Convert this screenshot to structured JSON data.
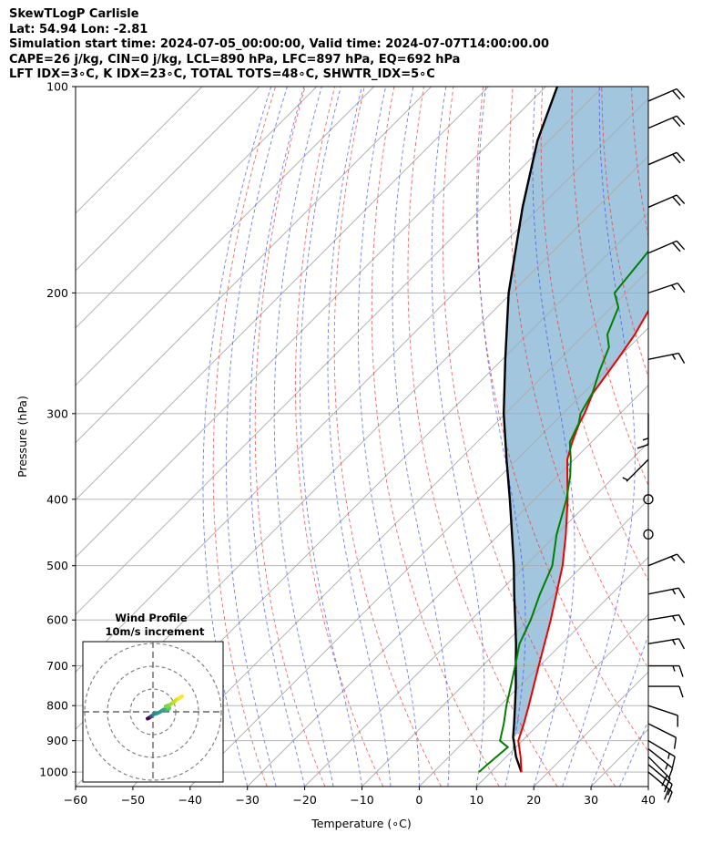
{
  "header": {
    "line1": "SkewTLogP Carlisle",
    "line2": "Lat: 54.94   Lon: -2.81",
    "line3": "Simulation start time: 2024-07-05_00:00:00, Valid time: 2024-07-07T14:00:00.00",
    "line4": "CAPE=26 j/kg, CIN=0 j/kg, LCL=890 hPa, LFC=897 hPa, EQ=692 hPa",
    "line5": "LFT IDX=3∘C, K IDX=23∘C, TOTAL TOTS=48∘C, SHWTR_IDX=5∘C"
  },
  "chart_data": [
    {
      "type": "line",
      "xlabel": "Temperature (∘C)",
      "ylabel": "Pressure (hPa)",
      "xlim": [
        -60,
        40
      ],
      "ylim": [
        1050,
        100
      ],
      "yscale": "log",
      "skew": true,
      "grid": true,
      "x_ticks": [
        -60,
        -50,
        -40,
        -30,
        -20,
        -10,
        0,
        10,
        20,
        30,
        40
      ],
      "x_tick_labels": [
        "−60",
        "−50",
        "−40",
        "−30",
        "−20",
        "−10",
        "0",
        "10",
        "20",
        "30",
        "40"
      ],
      "y_ticks": [
        1000,
        900,
        800,
        700,
        600,
        500,
        400,
        300,
        200,
        100
      ],
      "y_tick_labels": [
        "1000",
        "900",
        "800",
        "700",
        "600",
        "500",
        "400",
        "300",
        "200",
        "100"
      ],
      "cape_fill_color": "#a3c6df",
      "series": [
        {
          "role": "temperature",
          "color": "#ee0000",
          "points": [
            [
              1000,
              15.3
            ],
            [
              950,
              12.5
            ],
            [
              900,
              9.3
            ],
            [
              850,
              7.3
            ],
            [
              800,
              5.0
            ],
            [
              700,
              -0.2
            ],
            [
              600,
              -6.1
            ],
            [
              500,
              -13.5
            ],
            [
              450,
              -18.4
            ],
            [
              400,
              -24.2
            ],
            [
              370,
              -28.3
            ],
            [
              350,
              -31.2
            ],
            [
              330,
              -33.4
            ],
            [
              310,
              -35.4
            ],
            [
              300,
              -36.2
            ],
            [
              280,
              -38.3
            ],
            [
              250,
              -39.9
            ],
            [
              230,
              -41.2
            ],
            [
              210,
              -43.2
            ],
            [
              200,
              -44.4
            ],
            [
              190,
              -46.0
            ],
            [
              180,
              -47.9
            ],
            [
              170,
              -50.0
            ],
            [
              160,
              -51.9
            ],
            [
              150,
              -54.1
            ],
            [
              140,
              -56.5
            ],
            [
              130,
              -58.8
            ],
            [
              120,
              -61.5
            ],
            [
              110,
              -64.4
            ],
            [
              100,
              -67.6
            ]
          ]
        },
        {
          "role": "dewpoint",
          "color": "#008000",
          "points": [
            [
              1000,
              7.9
            ],
            [
              980,
              8.0
            ],
            [
              950,
              8.3
            ],
            [
              920,
              8.6
            ],
            [
              900,
              6.1
            ],
            [
              850,
              3.8
            ],
            [
              800,
              1.1
            ],
            [
              750,
              -1.5
            ],
            [
              700,
              -4.3
            ],
            [
              650,
              -7.4
            ],
            [
              600,
              -9.6
            ],
            [
              550,
              -12.5
            ],
            [
              500,
              -15.3
            ],
            [
              450,
              -20.0
            ],
            [
              400,
              -24.4
            ],
            [
              370,
              -27.8
            ],
            [
              350,
              -30.6
            ],
            [
              330,
              -33.8
            ],
            [
              310,
              -35.5
            ],
            [
              300,
              -36.9
            ],
            [
              280,
              -38.4
            ],
            [
              260,
              -41.0
            ],
            [
              240,
              -43.5
            ],
            [
              230,
              -46.0
            ],
            [
              210,
              -48.8
            ],
            [
              200,
              -52.0
            ],
            [
              180,
              -53.0
            ],
            [
              160,
              -54.2
            ],
            [
              140,
              -55.5
            ],
            [
              120,
              -56.8
            ],
            [
              100,
              -58.0
            ]
          ]
        },
        {
          "role": "parcel",
          "color": "#000000",
          "points": [
            [
              1000,
              15.3
            ],
            [
              950,
              11.7
            ],
            [
              900,
              8.5
            ],
            [
              890,
              7.8
            ],
            [
              850,
              5.6
            ],
            [
              800,
              2.6
            ],
            [
              750,
              -0.6
            ],
            [
              700,
              -4.2
            ],
            [
              650,
              -8.0
            ],
            [
              600,
              -12.3
            ],
            [
              550,
              -17.0
            ],
            [
              500,
              -22.0
            ],
            [
              450,
              -27.8
            ],
            [
              400,
              -34.3
            ],
            [
              350,
              -41.8
            ],
            [
              300,
              -50.3
            ],
            [
              250,
              -59.5
            ],
            [
              200,
              -70.5
            ],
            [
              150,
              -83.0
            ],
            [
              120,
              -92.0
            ],
            [
              100,
              -98.0
            ]
          ]
        }
      ],
      "wind_barbs": [
        {
          "p": 1000,
          "u": -6,
          "v": 5
        },
        {
          "p": 975,
          "u": -6,
          "v": 5
        },
        {
          "p": 950,
          "u": -5,
          "v": 5
        },
        {
          "p": 925,
          "u": -5,
          "v": 4
        },
        {
          "p": 900,
          "u": -5,
          "v": 3
        },
        {
          "p": 850,
          "u": -4,
          "v": 2
        },
        {
          "p": 800,
          "u": -3,
          "v": 1
        },
        {
          "p": 750,
          "u": -4,
          "v": 0
        },
        {
          "p": 700,
          "u": -5,
          "v": 0
        },
        {
          "p": 650,
          "u": -6,
          "v": -1
        },
        {
          "p": 600,
          "u": -6,
          "v": -1
        },
        {
          "p": 550,
          "u": -5,
          "v": -1
        },
        {
          "p": 500,
          "u": -5,
          "v": -2
        },
        {
          "p": 450,
          "u": 0,
          "v": 0
        },
        {
          "p": 400,
          "u": 0,
          "v": 0
        },
        {
          "p": 350,
          "u": 2,
          "v": 2
        },
        {
          "p": 300,
          "u": 0,
          "v": 5
        },
        {
          "p": 250,
          "u": -5,
          "v": -1
        },
        {
          "p": 200,
          "u": -6,
          "v": -2
        },
        {
          "p": 175,
          "u": -7,
          "v": -3
        },
        {
          "p": 150,
          "u": -7,
          "v": -3
        },
        {
          "p": 130,
          "u": -7,
          "v": -3
        },
        {
          "p": 115,
          "u": -7,
          "v": -3
        },
        {
          "p": 105,
          "u": -7,
          "v": -3
        }
      ]
    },
    {
      "type": "hodograph",
      "title": "Wind Profile",
      "subtitle": "10m/s increment",
      "rings_ms": [
        10,
        20,
        30
      ],
      "points_uv": [
        [
          -1.2,
          -1.5
        ],
        [
          -0.8,
          -1.3
        ],
        [
          -0.4,
          -1.0
        ],
        [
          0.1,
          -0.6
        ],
        [
          0.5,
          -0.4
        ],
        [
          1.0,
          -0.3
        ],
        [
          1.6,
          0.0
        ],
        [
          2.2,
          0.4
        ],
        [
          2.8,
          0.7
        ],
        [
          3.3,
          0.5
        ],
        [
          3.6,
          0.8
        ],
        [
          3.2,
          1.1
        ],
        [
          2.8,
          1.2
        ],
        [
          3.8,
          1.6
        ],
        [
          4.5,
          2.1
        ],
        [
          5.2,
          2.7
        ],
        [
          5.8,
          3.0
        ],
        [
          6.4,
          3.4
        ]
      ]
    }
  ]
}
